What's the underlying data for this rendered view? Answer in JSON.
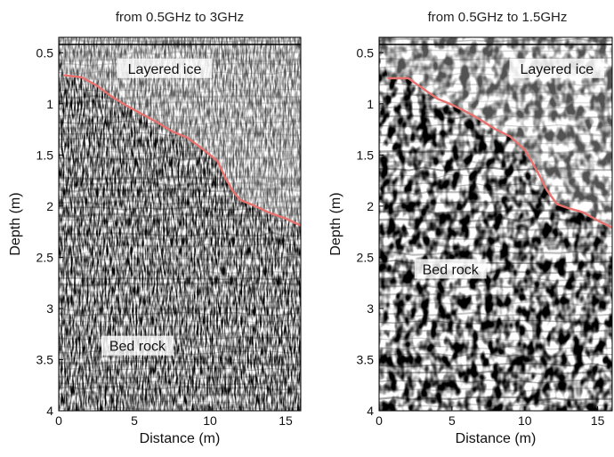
{
  "chart_data": [
    {
      "type": "radargram",
      "title": "from 0.5GHz to 3GHz",
      "xlabel": "Distance (m)",
      "ylabel": "Depth (m)",
      "xlim": [
        0,
        16
      ],
      "ylim": [
        4,
        0.35
      ],
      "xticks": [
        "0",
        "5",
        "10",
        "15"
      ],
      "yticks": [
        "0.5",
        "1",
        "1.5",
        "2",
        "2.5",
        "3",
        "3.5",
        "4"
      ],
      "colormap": "grayscale",
      "interface_color": "#e8716e",
      "interface_line": {
        "x": [
          0.3,
          1.5,
          2.5,
          3.5,
          4.5,
          5.5,
          6.5,
          7.5,
          8.5,
          9.5,
          10.5,
          11.0,
          11.5,
          12.0,
          13.0,
          14.0,
          15.0,
          16.0
        ],
        "y": [
          0.72,
          0.74,
          0.82,
          0.93,
          1.02,
          1.1,
          1.18,
          1.27,
          1.33,
          1.44,
          1.56,
          1.72,
          1.85,
          1.94,
          2.0,
          2.07,
          2.12,
          2.19
        ]
      },
      "annotations": [
        {
          "text": "Layered ice",
          "x": 7.0,
          "y": 0.67
        },
        {
          "text": "Bed rock",
          "x": 5.2,
          "y": 3.38
        }
      ]
    },
    {
      "type": "radargram",
      "title": "from 0.5GHz to 1.5GHz",
      "xlabel": "Distance (m)",
      "ylabel": "Depth (m)",
      "xlim": [
        0,
        16
      ],
      "ylim": [
        4,
        0.35
      ],
      "xticks": [
        "0",
        "5",
        "10",
        "15"
      ],
      "yticks": [
        "0.5",
        "1",
        "1.5",
        "2",
        "2.5",
        "3",
        "3.5",
        "4"
      ],
      "colormap": "grayscale",
      "interface_color": "#e8716e",
      "interface_line": {
        "x": [
          0.6,
          2.0,
          3.0,
          4.0,
          5.0,
          6.0,
          7.0,
          8.0,
          9.0,
          10.0,
          10.5,
          11.0,
          11.5,
          12.2,
          13.0,
          14.0,
          15.0,
          16.0
        ],
        "y": [
          0.75,
          0.75,
          0.85,
          0.95,
          1.01,
          1.08,
          1.16,
          1.25,
          1.32,
          1.45,
          1.57,
          1.7,
          1.84,
          1.98,
          2.02,
          2.06,
          2.14,
          2.21
        ]
      },
      "annotations": [
        {
          "text": "Layered ice",
          "x": 12.2,
          "y": 0.67
        },
        {
          "text": "Bed rock",
          "x": 4.9,
          "y": 2.63
        }
      ]
    }
  ]
}
